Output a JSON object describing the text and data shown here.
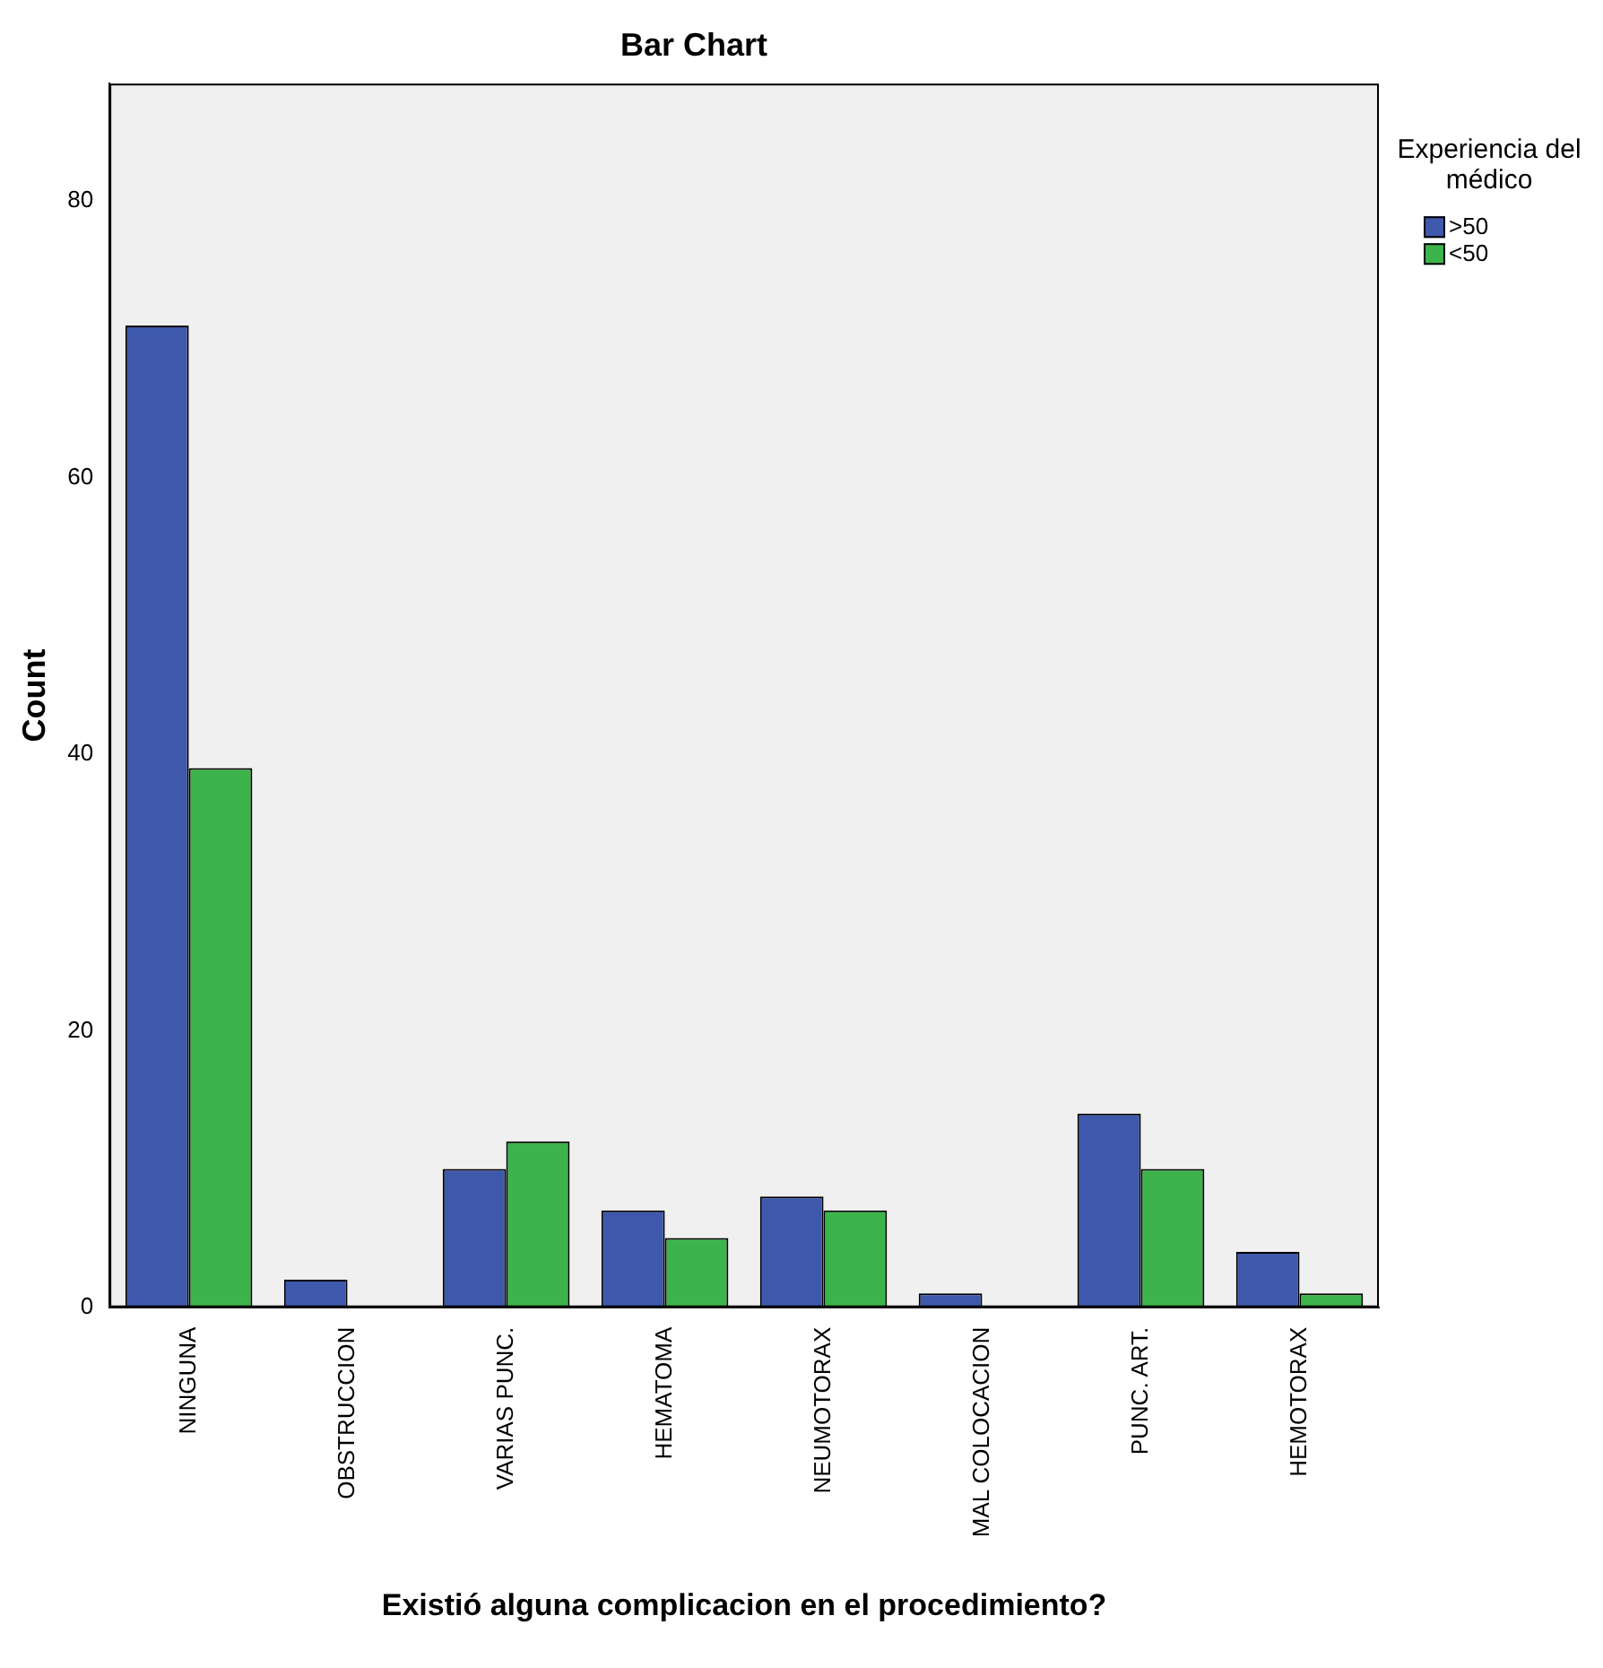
{
  "chart_data": {
    "type": "bar",
    "title": "Bar Chart",
    "xlabel": "Existió alguna complicacion en el procedimiento?",
    "ylabel": "Count",
    "legend_title": "Experiencia del médico",
    "categories": [
      "NINGUNA",
      "OBSTRUCCION",
      "VARIAS PUNC.",
      "HEMATOMA",
      "NEUMOTORAX",
      "MAL COLOCACION",
      "PUNC. ART.",
      "HEMOTORAX"
    ],
    "series": [
      {
        "name": ">50",
        "color": "#3e58ac",
        "values": [
          71,
          2,
          10,
          7,
          8,
          1,
          14,
          4
        ]
      },
      {
        "name": "<50",
        "color": "#3cb44b",
        "values": [
          39,
          0,
          12,
          5,
          7,
          0,
          10,
          1
        ]
      }
    ],
    "ylim": [
      0,
      88.5
    ],
    "yticks": [
      0,
      20,
      40,
      60,
      80
    ],
    "grid": false,
    "legend": "top right"
  }
}
